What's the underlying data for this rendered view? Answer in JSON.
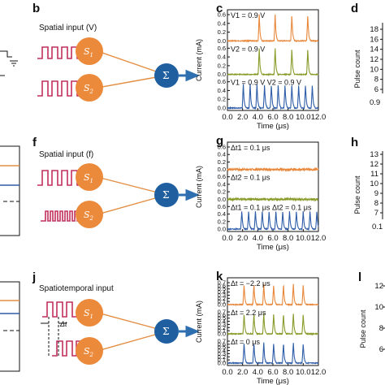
{
  "colors": {
    "orange": "#e8873a",
    "olive": "#8a9a2a",
    "blue": "#2e5da8",
    "pulse": "#c2305c",
    "line_orange": "#e38f44",
    "neuron": "#ec8a3c",
    "sum": "#1f5fa0"
  },
  "panels": {
    "b": {
      "letter": "b",
      "title": "Spatial input (V)",
      "s1": "S",
      "s1sub": "1",
      "s2": "S",
      "s2sub": "2",
      "sum": "Σ"
    },
    "f": {
      "letter": "f",
      "title": "Spatial input (f)",
      "s1": "S",
      "s1sub": "1",
      "s2": "S",
      "s2sub": "2",
      "sum": "Σ"
    },
    "j": {
      "letter": "j",
      "title": "Spatiotemporal input",
      "s1": "S",
      "s1sub": "1",
      "s2": "S",
      "s2sub": "2",
      "sum": "Σ",
      "dt": "Δt"
    },
    "c": {
      "letter": "c",
      "ylabel": "Current (mA)",
      "xlabel": "Time (μs)",
      "xticks": [
        "0.0",
        "2.0",
        "4.0",
        "6.0",
        "8.0",
        "10.0",
        "12.0"
      ],
      "annotations": [
        "V1 = 0.9 V",
        "V2 = 0.9 V",
        "V1 = 0.9 V   V2 = 0.9 V"
      ]
    },
    "g": {
      "letter": "g",
      "ylabel": "Current (mA)",
      "xlabel": "Time (μs)",
      "xticks": [
        "0.0",
        "2.0",
        "4.0",
        "6.0",
        "8.0",
        "10.0",
        "12.0"
      ],
      "annotations": [
        "Δt1 = 0.1 μs",
        "Δt2 = 0.1 μs",
        "Δt1 = 0.1 μs  Δt2 = 0.1 μs"
      ]
    },
    "k": {
      "letter": "k",
      "ylabel": "Current (mA)",
      "xlabel": "Time (μs)",
      "xticks": [
        "0.0",
        "2.0",
        "4.0",
        "6.0",
        "8.0",
        "10.0",
        "12.0"
      ],
      "annotations": [
        "Δt = −2.2 μs",
        "Δt = 2.2 μs",
        "Δt = 0 μs"
      ]
    },
    "d": {
      "letter": "d",
      "ylabel": "Pulse count",
      "yticks": [
        "18",
        "16",
        "14",
        "12",
        "10",
        "8",
        "6"
      ],
      "xtick": "0.9"
    },
    "h": {
      "letter": "h",
      "ylabel": "Pulse count",
      "yticks": [
        "13",
        "12",
        "11",
        "10",
        "9",
        "8",
        "7"
      ],
      "xtick": "0.1"
    },
    "l": {
      "letter": "l",
      "ylabel": "Pulse count",
      "yticks": [
        "12",
        "10",
        "8",
        "6"
      ]
    }
  },
  "chart_data": [
    {
      "type": "line",
      "panel": "c",
      "xlabel": "Time (μs)",
      "ylabel": "Current (mA)",
      "xlim": [
        0,
        12
      ],
      "yticks": [
        0.0,
        0.2,
        0.4,
        0.6
      ],
      "series": [
        {
          "name": "V1 = 0.9 V",
          "peaks_x": [
            4.2,
            6.3,
            8.5,
            10.6
          ],
          "peak_y": 0.6
        },
        {
          "name": "V2 = 0.9 V",
          "peaks_x": [
            4.2,
            6.3,
            8.5,
            10.6
          ],
          "peak_y": 0.6
        },
        {
          "name": "V1 = 0.9 V  V2 = 0.9 V",
          "peaks_x": [
            2.1,
            3.0,
            3.9,
            4.9,
            5.8,
            6.7,
            7.6,
            8.5,
            9.4,
            10.3,
            11.2
          ],
          "peak_y": 0.55
        }
      ]
    },
    {
      "type": "line",
      "panel": "g",
      "xlabel": "Time (μs)",
      "ylabel": "Current (mA)",
      "xlim": [
        0,
        12
      ],
      "yticks": [
        0.0,
        0.2,
        0.4,
        0.6
      ],
      "series": [
        {
          "name": "Δt1 = 0.1 μs",
          "peaks_x": [],
          "peak_y": 0.0
        },
        {
          "name": "Δt2 = 0.1 μs",
          "peaks_x": [],
          "peak_y": 0.0
        },
        {
          "name": "Δt1 = 0.1 μs  Δt2 = 0.1 μs",
          "peaks_x": [
            1.9,
            2.8,
            3.7,
            4.6,
            5.5,
            6.4,
            7.3,
            8.2,
            9.1,
            10.0,
            10.9,
            11.8
          ],
          "peak_y": 0.5
        }
      ]
    },
    {
      "type": "line",
      "panel": "k",
      "xlabel": "Time (μs)",
      "ylabel": "Current (mA)",
      "xlim": [
        0,
        12
      ],
      "yticks": [
        0.0,
        0.1,
        0.2,
        0.3,
        0.4,
        0.5,
        0.6,
        0.7
      ],
      "series": [
        {
          "name": "Δt = −2.2 μs",
          "peaks_x": [
            2.2,
            3.5,
            4.8,
            6.1,
            7.4,
            8.7,
            10.0
          ],
          "peak_y": 0.65
        },
        {
          "name": "Δt = 2.2 μs",
          "peaks_x": [
            2.2,
            3.5,
            4.8,
            6.1,
            7.4,
            8.7,
            10.0
          ],
          "peak_y": 0.65
        },
        {
          "name": "Δt = 0 μs",
          "peaks_x": [
            2.2,
            3.5,
            4.8,
            6.1,
            7.4,
            8.7,
            10.0
          ],
          "peak_y": 0.65
        }
      ]
    }
  ]
}
